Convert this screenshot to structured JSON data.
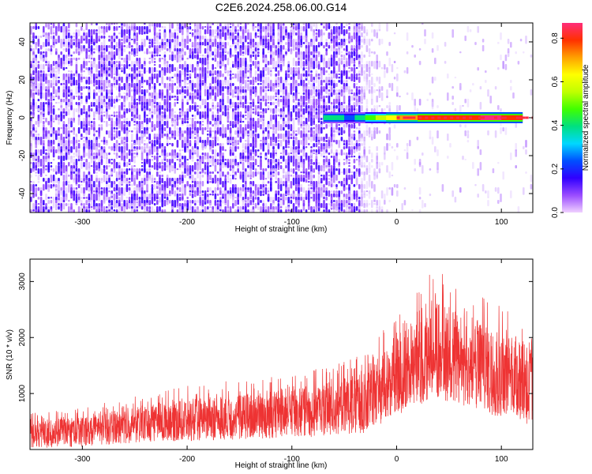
{
  "title": "C2E6.2024.258.06.00.G14",
  "chart_data": [
    {
      "type": "heatmap",
      "xlabel": "Height of straight line (km)",
      "ylabel": "Frequency (Hz)",
      "xlim": [
        -350,
        130
      ],
      "ylim": [
        -50,
        50
      ],
      "xticks": [
        -300,
        -200,
        -100,
        0,
        100
      ],
      "xtick_labels": [
        "-300",
        "-200",
        "-100",
        "0",
        "100"
      ],
      "yticks": [
        -40,
        -20,
        0,
        20,
        40
      ],
      "ytick_labels": [
        "-40",
        "-20",
        "0",
        "20",
        "40"
      ],
      "colorbar": {
        "label": "Normalized spectral amplitude",
        "range": [
          0.0,
          0.87
        ],
        "ticks": [
          0.0,
          0.2,
          0.4,
          0.6,
          0.8
        ],
        "tick_labels": [
          "0.0",
          "0.2",
          "0.4",
          "0.6",
          "0.8"
        ],
        "colors": [
          "#f0d0ff",
          "#9a4cff",
          "#3000ff",
          "#0050ff",
          "#00d8ff",
          "#00e080",
          "#40ff00",
          "#c0ff00",
          "#ffff00",
          "#ffa000",
          "#ff3000",
          "#ff2d7a"
        ]
      },
      "noise_region_xlim": [
        -350,
        -35
      ],
      "signal_band": {
        "frequency_hz": 0,
        "x_start": -70,
        "x_end": 130,
        "points": [
          {
            "x": -70,
            "amplitude": 0.4
          },
          {
            "x": -50,
            "amplitude": 0.3
          },
          {
            "x": -40,
            "amplitude": 0.42
          },
          {
            "x": -30,
            "amplitude": 0.55
          },
          {
            "x": -20,
            "amplitude": 0.62
          },
          {
            "x": -10,
            "amplitude": 0.7
          },
          {
            "x": 0,
            "amplitude": 0.78
          },
          {
            "x": 20,
            "amplitude": 0.82
          },
          {
            "x": 40,
            "amplitude": 0.84
          },
          {
            "x": 60,
            "amplitude": 0.86
          },
          {
            "x": 80,
            "amplitude": 0.87
          },
          {
            "x": 100,
            "amplitude": 0.84
          },
          {
            "x": 120,
            "amplitude": 0.86
          }
        ]
      },
      "grid": false
    },
    {
      "type": "line",
      "xlabel": "Height of straight line (km)",
      "ylabel": "SNR (10 * v/v)",
      "xlim": [
        -350,
        130
      ],
      "ylim": [
        0,
        3400
      ],
      "xticks": [
        -300,
        -200,
        -100,
        0,
        100
      ],
      "xtick_labels": [
        "-300",
        "-200",
        "-100",
        "0",
        "100"
      ],
      "yticks": [
        1000,
        2000,
        3000
      ],
      "ytick_labels": [
        "1000",
        "2000",
        "3000"
      ],
      "color": "#ee3333",
      "grid": false,
      "series": [
        {
          "x": [
            -350,
            -300,
            -250,
            -200,
            -150,
            -100,
            -60,
            -30,
            -10,
            10,
            40,
            60,
            90,
            110,
            130
          ],
          "y_min": [
            20,
            50,
            120,
            150,
            180,
            200,
            250,
            300,
            500,
            700,
            900,
            800,
            600,
            500,
            400
          ],
          "y_mean": [
            300,
            350,
            450,
            520,
            600,
            700,
            780,
            900,
            1200,
            1450,
            1600,
            1550,
            1500,
            1400,
            1350
          ],
          "y_max": [
            650,
            750,
            950,
            1150,
            1250,
            1350,
            1500,
            1750,
            2200,
            2700,
            3350,
            3000,
            2800,
            2400,
            2300
          ]
        }
      ]
    }
  ]
}
